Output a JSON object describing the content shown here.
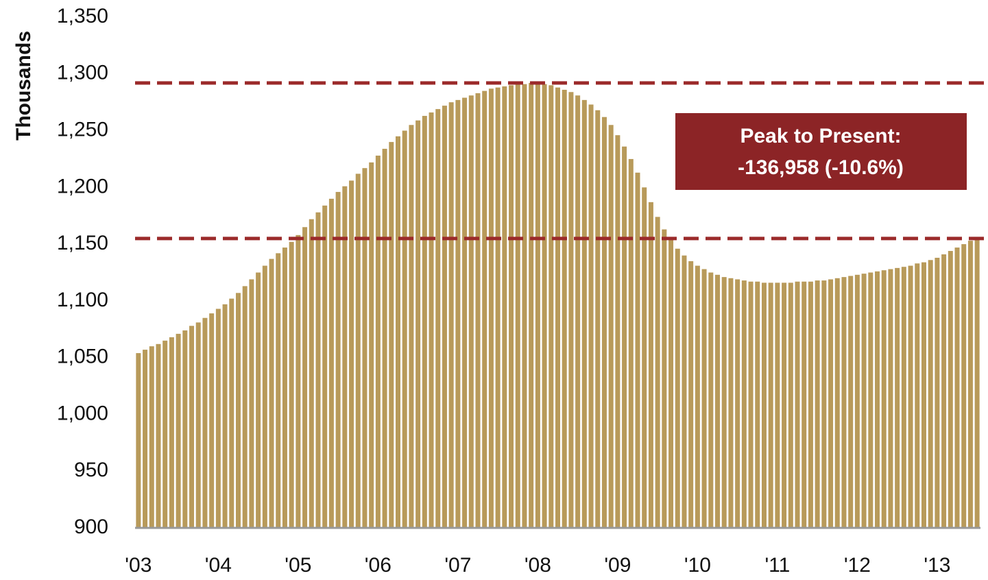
{
  "chart_data": {
    "type": "bar",
    "ylabel": "Thousands",
    "annotation": [
      "Peak to Present:",
      "-136,958 (-10.6%)"
    ],
    "annotation_color": "#8c2426",
    "hlines": [
      1292,
      1155
    ],
    "hline_color": "#9b2a2a",
    "color": "#b89a5a",
    "categories": [
      "'03",
      null,
      null,
      null,
      null,
      null,
      null,
      null,
      null,
      null,
      null,
      null,
      "'04",
      null,
      null,
      null,
      null,
      null,
      null,
      null,
      null,
      null,
      null,
      null,
      "'05",
      null,
      null,
      null,
      null,
      null,
      null,
      null,
      null,
      null,
      null,
      null,
      "'06",
      null,
      null,
      null,
      null,
      null,
      null,
      null,
      null,
      null,
      null,
      null,
      "'07",
      null,
      null,
      null,
      null,
      null,
      null,
      null,
      null,
      null,
      null,
      null,
      "'08",
      null,
      null,
      null,
      null,
      null,
      null,
      null,
      null,
      null,
      null,
      null,
      "'09",
      null,
      null,
      null,
      null,
      null,
      null,
      null,
      null,
      null,
      null,
      null,
      "'10",
      null,
      null,
      null,
      null,
      null,
      null,
      null,
      null,
      null,
      null,
      null,
      "'11",
      null,
      null,
      null,
      null,
      null,
      null,
      null,
      null,
      null,
      null,
      null,
      "'12",
      null,
      null,
      null,
      null,
      null,
      null,
      null,
      null,
      null,
      null,
      null,
      "'13",
      null,
      null,
      null,
      null,
      null,
      null
    ],
    "values": [
      1054,
      1057,
      1060,
      1062,
      1065,
      1068,
      1071,
      1074,
      1078,
      1081,
      1085,
      1089,
      1093,
      1097,
      1102,
      1107,
      1113,
      1119,
      1125,
      1131,
      1137,
      1142,
      1147,
      1152,
      1158,
      1165,
      1172,
      1178,
      1184,
      1190,
      1196,
      1201,
      1206,
      1212,
      1217,
      1222,
      1228,
      1234,
      1240,
      1245,
      1250,
      1255,
      1259,
      1263,
      1266,
      1269,
      1272,
      1275,
      1277,
      1279,
      1281,
      1283,
      1285,
      1287,
      1288,
      1289,
      1290,
      1291,
      1291,
      1292,
      1292,
      1291,
      1290,
      1288,
      1286,
      1284,
      1281,
      1277,
      1273,
      1268,
      1262,
      1255,
      1246,
      1236,
      1225,
      1213,
      1200,
      1187,
      1174,
      1163,
      1154,
      1146,
      1140,
      1135,
      1131,
      1128,
      1125,
      1123,
      1121,
      1120,
      1119,
      1118,
      1117,
      1117,
      1116,
      1116,
      1116,
      1116,
      1116,
      1117,
      1117,
      1117,
      1118,
      1118,
      1119,
      1120,
      1121,
      1122,
      1123,
      1124,
      1125,
      1126,
      1127,
      1128,
      1129,
      1130,
      1131,
      1133,
      1134,
      1136,
      1138,
      1141,
      1144,
      1147,
      1150,
      1153,
      1155
    ],
    "ylim": [
      900,
      1350
    ],
    "yticks": [
      900,
      950,
      {
        "value": 1000,
        "label": "1,000"
      },
      {
        "value": 1050,
        "label": "1,050"
      },
      {
        "value": 1100,
        "label": "1,100"
      },
      {
        "value": 1150,
        "label": "1,150"
      },
      {
        "value": 1200,
        "label": "1,200"
      },
      {
        "value": 1250,
        "label": "1,250"
      },
      {
        "value": 1300,
        "label": "1,300"
      },
      {
        "value": 1350,
        "label": "1,350"
      }
    ]
  }
}
